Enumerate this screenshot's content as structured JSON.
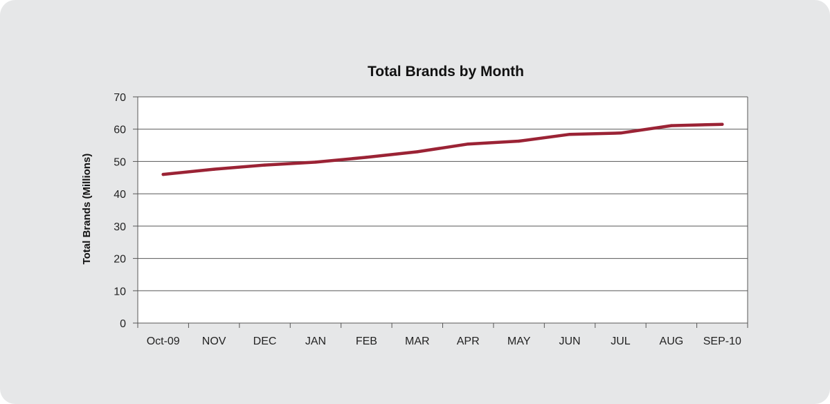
{
  "chart_data": {
    "type": "line",
    "title": "Total Brands by Month",
    "xlabel": "",
    "ylabel": "Total Brands (Millions)",
    "categories": [
      "Oct-09",
      "NOV",
      "DEC",
      "JAN",
      "FEB",
      "MAR",
      "APR",
      "MAY",
      "JUN",
      "JUL",
      "AUG",
      "SEP-10"
    ],
    "series": [
      {
        "values": [
          46.0,
          47.6,
          48.9,
          49.8,
          51.3,
          53.0,
          55.4,
          56.3,
          58.4,
          58.8,
          61.1,
          61.5
        ]
      }
    ],
    "ylim": [
      0,
      70
    ],
    "yticks": [
      0,
      10,
      20,
      30,
      40,
      50,
      60,
      70
    ],
    "grid": true,
    "legend": "none",
    "colors": {
      "line": "#9b2335",
      "grid": "#555555",
      "panel": "#e6e7e8",
      "plot_bg": "#ffffff"
    }
  }
}
